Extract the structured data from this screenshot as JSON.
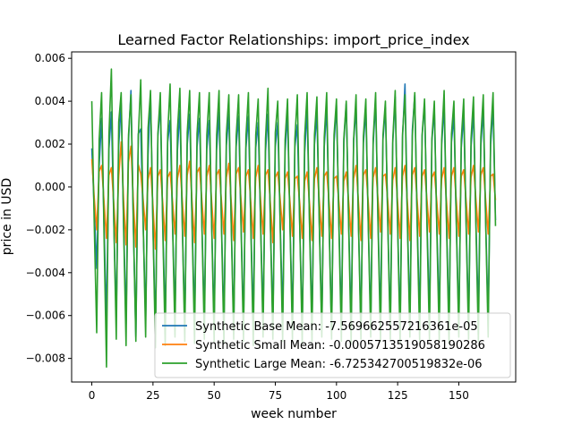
{
  "chart_data": {
    "type": "line",
    "title": "Learned Factor Relationships: import_price_index",
    "xlabel": "week number",
    "ylabel": "price in USD",
    "xlim": [
      -8.25,
      173.25
    ],
    "ylim": [
      -0.0091,
      0.0063
    ],
    "x_ticks": [
      0,
      25,
      50,
      75,
      100,
      125,
      150
    ],
    "x_tick_labels": [
      "0",
      "25",
      "50",
      "75",
      "100",
      "125",
      "150"
    ],
    "y_ticks": [
      -0.008,
      -0.006,
      -0.004,
      -0.002,
      0.0,
      0.002,
      0.004,
      0.006
    ],
    "y_tick_labels": [
      "−0.008",
      "−0.006",
      "−0.004",
      "−0.002",
      "0.000",
      "0.002",
      "0.004",
      "0.006"
    ],
    "grid": false,
    "legend_position": "lower-right",
    "period": 4,
    "n_points": 166,
    "series": [
      {
        "name": "Synthetic Base Mean: -7.569662557216361e-05",
        "color": "#1f77b4",
        "cycle_peak": [
          0.0018,
          0.0032,
          0.0035,
          0.0039,
          0.0045,
          0.0027,
          0.0043,
          0.0038,
          0.0031,
          0.0036,
          0.0034,
          0.0032,
          0.0031,
          0.0035,
          0.0034,
          0.0033,
          0.0033,
          0.003,
          0.0034,
          0.003,
          0.0034,
          0.0029,
          0.0036,
          0.0034,
          0.0037,
          0.0038,
          0.0039,
          0.0037,
          0.0036,
          0.004,
          0.0037,
          0.0042,
          0.0048,
          0.0043,
          0.0039,
          0.0036,
          0.0038,
          0.0033,
          0.0034,
          0.0035,
          0.0036,
          0.0037
        ],
        "cycle_trough": [
          -0.0038,
          -0.0063,
          -0.0061,
          -0.0064,
          -0.007,
          -0.0062,
          -0.0068,
          -0.0064,
          -0.0061,
          -0.0065,
          -0.0063,
          -0.0062,
          -0.0063,
          -0.0064,
          -0.0065,
          -0.0064,
          -0.0063,
          -0.0062,
          -0.0064,
          -0.0061,
          -0.0063,
          -0.0066,
          -0.0064,
          -0.0065,
          -0.0067,
          -0.0064,
          -0.0065,
          -0.0066,
          -0.0064,
          -0.0063,
          -0.0065,
          -0.0066,
          -0.0064,
          -0.0063,
          -0.0061,
          -0.0062,
          -0.0065,
          -0.0064,
          -0.0063,
          -0.0061,
          -0.0062,
          -0.006
        ]
      },
      {
        "name": "Synthetic Small Mean: -0.0005713519058190286",
        "color": "#ff7f0e",
        "cycle_peak": [
          0.0013,
          0.001,
          0.0009,
          0.0021,
          0.0019,
          0.0006,
          0.0009,
          0.0008,
          0.0007,
          0.001,
          0.0012,
          0.0009,
          0.001,
          0.0008,
          0.0011,
          0.0009,
          0.0008,
          0.001,
          0.0008,
          0.0007,
          0.0007,
          0.0005,
          0.0007,
          0.0009,
          0.0007,
          0.0005,
          0.0007,
          0.001,
          0.0008,
          0.0009,
          0.0006,
          0.0009,
          0.001,
          0.0009,
          0.0008,
          0.0007,
          0.0009,
          0.0009,
          0.0008,
          0.001,
          0.0009,
          0.0006
        ],
        "cycle_trough": [
          -0.002,
          -0.0024,
          -0.0026,
          -0.0027,
          -0.0028,
          -0.002,
          -0.0029,
          -0.0025,
          -0.0022,
          -0.0023,
          -0.0026,
          -0.0022,
          -0.0024,
          -0.0022,
          -0.0025,
          -0.0021,
          -0.0024,
          -0.0022,
          -0.0026,
          -0.002,
          -0.0023,
          -0.0024,
          -0.0025,
          -0.0023,
          -0.0024,
          -0.0022,
          -0.0023,
          -0.0025,
          -0.0024,
          -0.0021,
          -0.0022,
          -0.0024,
          -0.0025,
          -0.0023,
          -0.0021,
          -0.0022,
          -0.0024,
          -0.0023,
          -0.0022,
          -0.0021,
          -0.0022,
          -0.002
        ]
      },
      {
        "name": "Synthetic Large Mean: -6.725342700519832e-06",
        "color": "#2ca02c",
        "cycle_peak": [
          0.004,
          0.0044,
          0.0055,
          0.0044,
          0.0043,
          0.005,
          0.0045,
          0.0044,
          0.0048,
          0.0046,
          0.0045,
          0.0044,
          0.0044,
          0.0045,
          0.0043,
          0.0043,
          0.0044,
          0.0041,
          0.0046,
          0.004,
          0.0041,
          0.0043,
          0.0044,
          0.0042,
          0.0044,
          0.0041,
          0.004,
          0.0043,
          0.0041,
          0.0044,
          0.004,
          0.0045,
          0.0043,
          0.0044,
          0.0041,
          0.004,
          0.0045,
          0.004,
          0.0041,
          0.0042,
          0.0043,
          0.0044
        ],
        "cycle_trough": [
          -0.0068,
          -0.0084,
          -0.0071,
          -0.0074,
          -0.0072,
          -0.007,
          -0.0075,
          -0.0074,
          -0.007,
          -0.0072,
          -0.0073,
          -0.0071,
          -0.0072,
          -0.0073,
          -0.0071,
          -0.0072,
          -0.0074,
          -0.007,
          -0.0071,
          -0.0072,
          -0.0071,
          -0.0073,
          -0.0072,
          -0.007,
          -0.0071,
          -0.0072,
          -0.0073,
          -0.0071,
          -0.007,
          -0.0072,
          -0.0071,
          -0.0073,
          -0.007,
          -0.0072,
          -0.0071,
          -0.0072,
          -0.0073,
          -0.007,
          -0.0071,
          -0.0072,
          -0.007,
          -0.0071
        ]
      }
    ]
  }
}
